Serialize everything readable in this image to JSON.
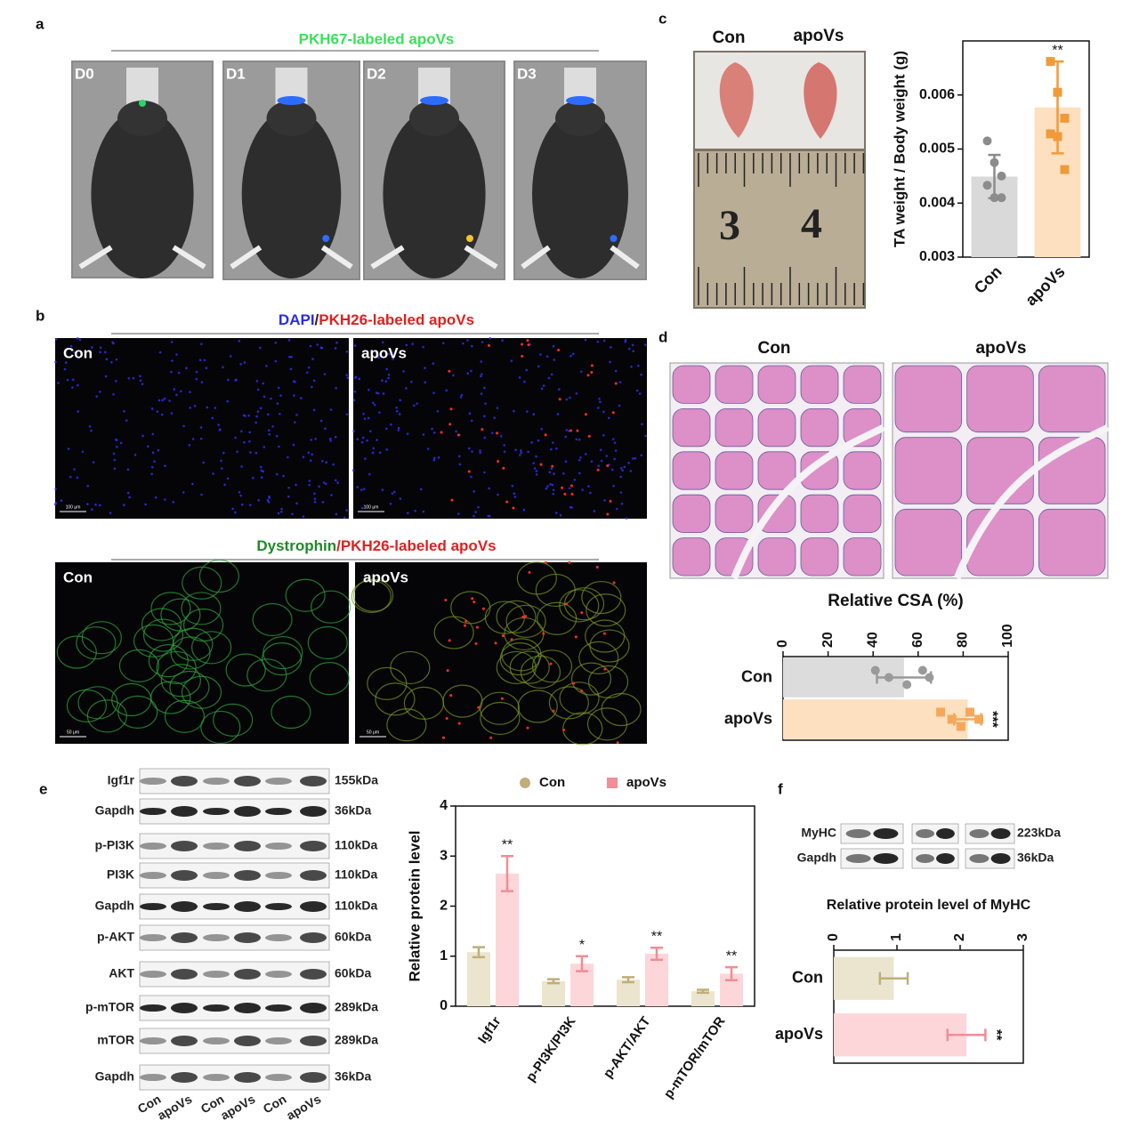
{
  "panel_a": {
    "letter": "a",
    "title": "PKH67-labeled apoVs",
    "images": [
      "D0",
      "D1",
      "D2",
      "D3"
    ]
  },
  "panel_b": {
    "letter": "b",
    "title_1": {
      "stain": "DAPI",
      "sep": "/",
      "label": "PKH26-labeled apoVs"
    },
    "images_1": [
      "Con",
      "apoVs"
    ],
    "scale_1": [
      "100 μm",
      "100 μm"
    ],
    "title_2": {
      "stain": "Dystrophin",
      "label": "/PKH26-labeled apoVs"
    },
    "images_2": [
      "Con",
      "apoVs"
    ],
    "scale_2": [
      "50 μm",
      "50 μm"
    ]
  },
  "panel_c": {
    "letter": "c",
    "images": [
      "Con",
      "apoVs"
    ],
    "ruler": [
      "3",
      "4"
    ]
  },
  "panel_d": {
    "letter": "d",
    "images": [
      "Con",
      "apoVs"
    ]
  },
  "panel_e": {
    "letter": "e",
    "blot_rows": [
      {
        "protein": "Igf1r",
        "size": "155kDa"
      },
      {
        "protein": "Gapdh",
        "size": "36kDa"
      },
      {
        "protein": "p-PI3K",
        "size": "110kDa"
      },
      {
        "protein": "PI3K",
        "size": "110kDa"
      },
      {
        "protein": "Gapdh",
        "size": "110kDa"
      },
      {
        "protein": "p-AKT",
        "size": "60kDa"
      },
      {
        "protein": "AKT",
        "size": "60kDa"
      },
      {
        "protein": "p-mTOR",
        "size": "289kDa"
      },
      {
        "protein": "mTOR",
        "size": "289kDa"
      },
      {
        "protein": "Gapdh",
        "size": "36kDa"
      }
    ],
    "lanes": [
      "Con",
      "apoVs",
      "Con",
      "apoVs",
      "Con",
      "apoVs"
    ]
  },
  "panel_f": {
    "letter": "f",
    "blot_rows": [
      {
        "protein": "MyHC",
        "size": "223kDa"
      },
      {
        "protein": "Gapdh",
        "size": "36kDa"
      }
    ]
  },
  "chart_data": [
    {
      "type": "bar",
      "horizontal": false,
      "ylabel": "TA weight / Body weight (g)",
      "categories": [
        "Con",
        "apoVs"
      ],
      "values": [
        0.00449,
        0.00577
      ],
      "errors": [
        0.0004,
        0.00085
      ],
      "colors": [
        "#d9d9d9",
        "#fde0bf"
      ],
      "edge_colors": [
        "#8c8c8c",
        "#f09a3a"
      ],
      "points": [
        [
          0.00515,
          0.00475,
          0.0045,
          0.00433,
          0.0041,
          0.0041
        ],
        [
          0.00662,
          0.00605,
          0.00557,
          0.00528,
          0.00523,
          0.00462
        ]
      ],
      "annotations": [
        null,
        "**"
      ],
      "ylim": [
        0.003,
        0.007
      ],
      "yticks": [
        0.003,
        0.004,
        0.005,
        0.006
      ]
    },
    {
      "type": "bar",
      "horizontal": true,
      "title": "Relative CSA (%)",
      "categories": [
        "Con",
        "apoVs"
      ],
      "values": [
        53.7,
        82
      ],
      "errors": [
        12,
        6
      ],
      "colors": [
        "#dcdcdc",
        "#fde0bf"
      ],
      "edge_colors": [
        "#9a9a9a",
        "#f5a85a"
      ],
      "points": [
        [
          41,
          47,
          55,
          62,
          65
        ],
        [
          70,
          75,
          79,
          83,
          87
        ]
      ],
      "annotations": [
        null,
        "***"
      ],
      "xlim": [
        0,
        100
      ],
      "xticks": [
        0,
        20,
        40,
        60,
        80,
        100
      ]
    },
    {
      "type": "bar",
      "horizontal": false,
      "ylabel": "Relative protein level",
      "categories": [
        "Igf1r",
        "p-PI3K/PI3K",
        "p-AKT/AKT",
        "p-mTOR/mTOR"
      ],
      "series": [
        {
          "name": "Con",
          "color": "#ebe5cf",
          "edge_color": "#bfae7a",
          "values": [
            1.08,
            0.5,
            0.53,
            0.3
          ],
          "errors": [
            0.1,
            0.04,
            0.05,
            0.03
          ]
        },
        {
          "name": "apoVs",
          "color": "#fdd6d9",
          "edge_color": "#f08d96",
          "values": [
            2.65,
            0.85,
            1.05,
            0.65
          ],
          "errors": [
            0.35,
            0.15,
            0.12,
            0.13
          ]
        }
      ],
      "annotations": [
        "**",
        "*",
        "**",
        "**"
      ],
      "ylim": [
        0,
        4
      ],
      "yticks": [
        0,
        1,
        2,
        3,
        4
      ]
    },
    {
      "type": "bar",
      "horizontal": true,
      "title": "Relative protein level of MyHC",
      "categories": [
        "Con",
        "apoVs"
      ],
      "values": [
        0.95,
        2.1
      ],
      "errors": [
        0.22,
        0.3
      ],
      "colors": [
        "#ebe5cf",
        "#fdd6d9"
      ],
      "edge_colors": [
        "#bfae7a",
        "#f08d96"
      ],
      "annotations": [
        null,
        "**"
      ],
      "xlim": [
        0,
        3
      ],
      "xticks": [
        0,
        1,
        2,
        3
      ]
    }
  ]
}
